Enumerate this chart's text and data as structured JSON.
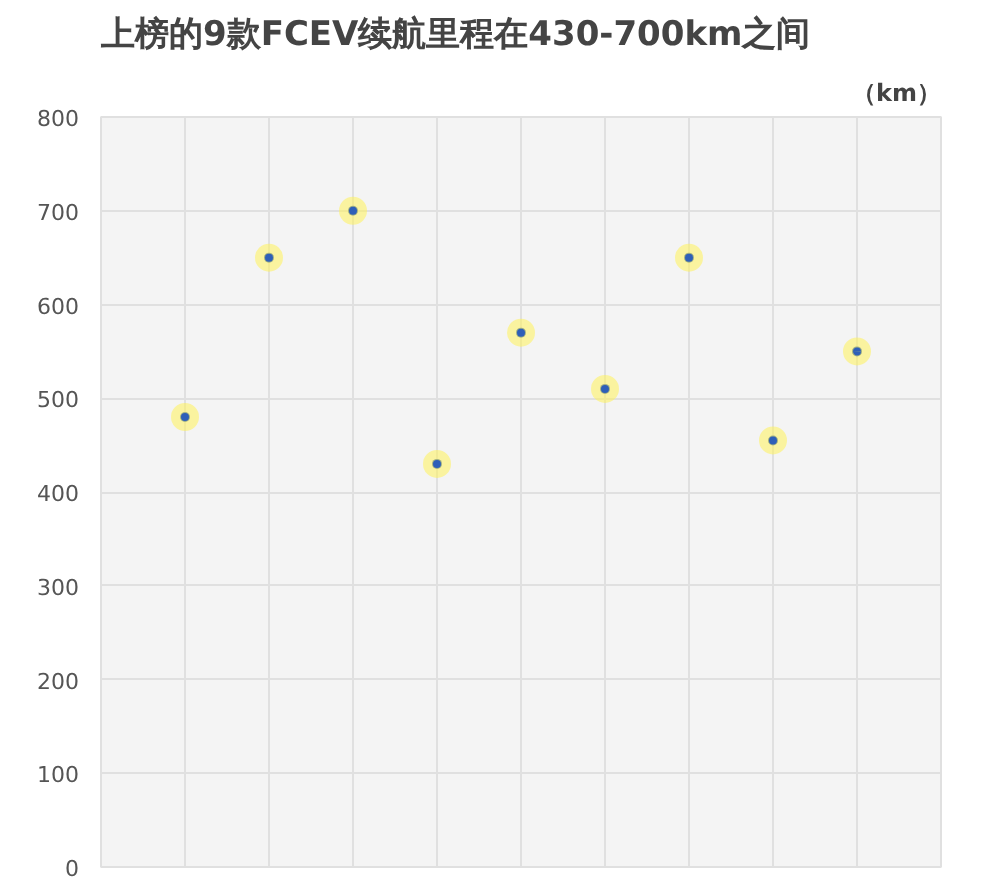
{
  "chart_data": {
    "type": "scatter",
    "title": "上榜的9款FCEV续航里程在430-700km之间",
    "ylabel": "（km）",
    "categories": [
      null,
      null,
      null,
      null,
      null,
      null,
      null,
      null,
      null
    ],
    "series": [
      {
        "color": "#2e5fb8",
        "values": [
          480,
          650,
          700,
          430,
          570,
          510,
          650,
          455,
          550
        ]
      }
    ],
    "ylim": [
      0,
      800
    ],
    "yticks": [
      0,
      100,
      200,
      300,
      400,
      500,
      600,
      700,
      800
    ],
    "grid": true,
    "marker": "circle"
  }
}
